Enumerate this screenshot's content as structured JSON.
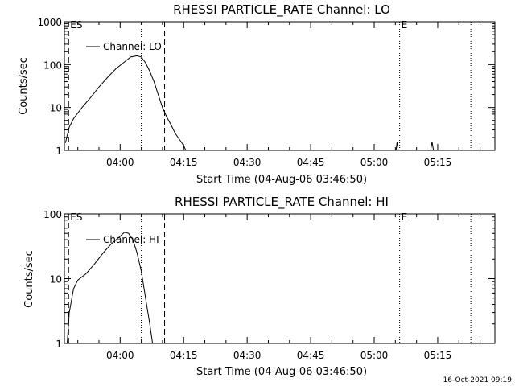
{
  "footer": {
    "timestamp": "16-Oct-2021 09:19"
  },
  "chart_data": [
    {
      "type": "line",
      "title": "RHESSI PARTICLE_RATE Channel: LO",
      "xlabel": "Start Time (04-Aug-06 03:46:50)",
      "ylabel": "Counts/sec",
      "y_scale": "log",
      "ylim": [
        1,
        1000
      ],
      "x_tick_labels": [
        "04:00",
        "04:15",
        "04:30",
        "04:45",
        "05:00",
        "05:15"
      ],
      "y_tick_labels": [
        "1",
        "10",
        "100",
        "1000"
      ],
      "legend": {
        "position": "top-left",
        "entries": [
          "Channel: LO"
        ]
      },
      "markers": [
        {
          "label": "ES",
          "time": "03:47:50",
          "style": "dashed"
        },
        {
          "label": "",
          "time": "04:10:30",
          "style": "dashed"
        },
        {
          "label": "",
          "time": "04:05:00",
          "style": "dotted"
        },
        {
          "label": "E",
          "time": "05:06:00",
          "style": "dotted"
        },
        {
          "label": "",
          "time": "05:22:50",
          "style": "dotted"
        }
      ],
      "series": [
        {
          "name": "Channel: LO",
          "points": [
            [
              "03:47:05",
              1.5
            ],
            [
              "03:48:00",
              3.5
            ],
            [
              "03:49:00",
              5.5
            ],
            [
              "03:51:00",
              10
            ],
            [
              "03:53:00",
              17
            ],
            [
              "03:55:00",
              30
            ],
            [
              "03:57:00",
              50
            ],
            [
              "03:59:00",
              80
            ],
            [
              "04:01:00",
              115
            ],
            [
              "04:02:30",
              150
            ],
            [
              "04:04:00",
              160
            ],
            [
              "04:05:00",
              150
            ],
            [
              "04:06:00",
              110
            ],
            [
              "04:07:00",
              70
            ],
            [
              "04:08:00",
              40
            ],
            [
              "04:09:00",
              20
            ],
            [
              "04:10:00",
              10
            ],
            [
              "04:11:00",
              6
            ],
            [
              "04:12:00",
              4
            ],
            [
              "04:13:00",
              2.5
            ],
            [
              "04:14:00",
              1.8
            ],
            [
              "04:15:00",
              1.3
            ],
            [
              "04:15:30",
              1.0
            ],
            [
              "05:05:10",
              1.0
            ],
            [
              "05:05:25",
              1.6
            ],
            [
              "05:05:40",
              1.0
            ],
            [
              "05:13:20",
              1.0
            ],
            [
              "05:13:40",
              1.6
            ],
            [
              "05:14:00",
              1.0
            ]
          ]
        }
      ]
    },
    {
      "type": "line",
      "title": "RHESSI PARTICLE_RATE Channel: HI",
      "xlabel": "Start Time (04-Aug-06 03:46:50)",
      "ylabel": "Counts/sec",
      "y_scale": "log",
      "ylim": [
        1,
        100
      ],
      "x_tick_labels": [
        "04:00",
        "04:15",
        "04:30",
        "04:45",
        "05:00",
        "05:15"
      ],
      "y_tick_labels": [
        "1",
        "10",
        "100"
      ],
      "legend": {
        "position": "top-left",
        "entries": [
          "Channel: HI"
        ]
      },
      "markers": [
        {
          "label": "ES",
          "time": "03:47:50",
          "style": "dashed"
        },
        {
          "label": "",
          "time": "04:10:30",
          "style": "dashed"
        },
        {
          "label": "",
          "time": "04:05:00",
          "style": "dotted"
        },
        {
          "label": "E",
          "time": "05:06:00",
          "style": "dotted"
        },
        {
          "label": "",
          "time": "05:22:50",
          "style": "dotted"
        }
      ],
      "series": [
        {
          "name": "Channel: HI",
          "points": [
            [
              "03:47:30",
              1.0
            ],
            [
              "03:48:00",
              3
            ],
            [
              "03:49:00",
              7
            ],
            [
              "03:50:00",
              9.5
            ],
            [
              "03:52:00",
              12
            ],
            [
              "03:54:00",
              17
            ],
            [
              "03:56:00",
              25
            ],
            [
              "03:58:00",
              35
            ],
            [
              "04:00:00",
              45
            ],
            [
              "04:01:00",
              52
            ],
            [
              "04:02:00",
              50
            ],
            [
              "04:03:00",
              40
            ],
            [
              "04:04:00",
              25
            ],
            [
              "04:05:00",
              13
            ],
            [
              "04:06:00",
              5
            ],
            [
              "04:07:00",
              2
            ],
            [
              "04:07:40",
              1.0
            ]
          ]
        }
      ]
    }
  ]
}
